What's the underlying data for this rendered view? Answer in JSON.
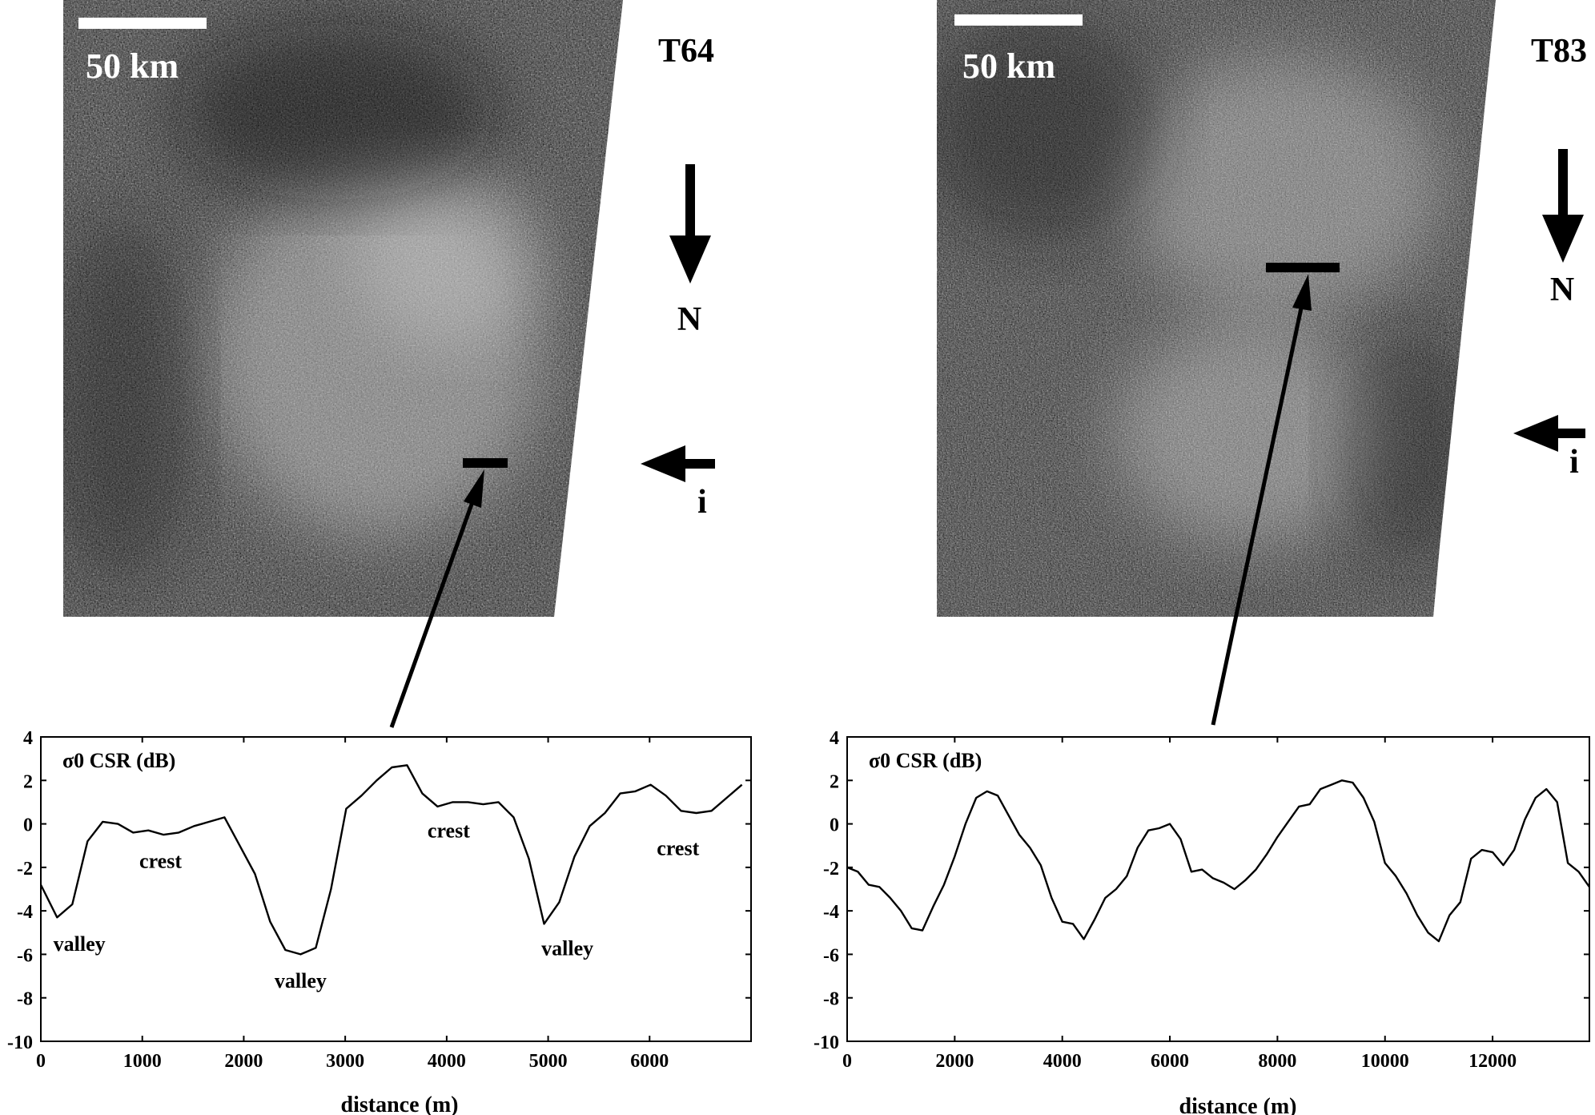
{
  "panels": [
    {
      "id": "t64",
      "label": "T64",
      "scale_bar": "50 km",
      "north_label": "N",
      "incidence_label": "i"
    },
    {
      "id": "t83",
      "label": "T83",
      "scale_bar": "50 km",
      "north_label": "N",
      "incidence_label": "i"
    }
  ],
  "chart_data": [
    {
      "type": "line",
      "title": "σ0 CSR (dB)",
      "xlabel": "distance (m)",
      "ylabel": "",
      "xlim": [
        0,
        7000
      ],
      "ylim": [
        -10,
        4
      ],
      "xticks": [
        0,
        1000,
        2000,
        3000,
        4000,
        5000,
        6000
      ],
      "yticks": [
        4,
        2,
        0,
        -2,
        -4,
        -6,
        -8,
        -10
      ],
      "grid": false,
      "x": [
        0,
        160,
        310,
        460,
        610,
        760,
        910,
        1060,
        1210,
        1360,
        1510,
        1660,
        1810,
        1960,
        2110,
        2260,
        2410,
        2560,
        2710,
        2860,
        3010,
        3160,
        3310,
        3460,
        3610,
        3760,
        3910,
        4060,
        4210,
        4360,
        4510,
        4660,
        4810,
        4960,
        5110,
        5260,
        5410,
        5560,
        5710,
        5860,
        6010,
        6160,
        6310,
        6460,
        6610,
        6760,
        6910
      ],
      "values": [
        -2.8,
        -4.3,
        -3.7,
        -0.8,
        0.1,
        0.0,
        -0.4,
        -0.3,
        -0.5,
        -0.4,
        -0.1,
        0.1,
        0.3,
        -1.0,
        -2.3,
        -4.5,
        -5.8,
        -6.0,
        -5.7,
        -3.0,
        0.7,
        1.3,
        2.0,
        2.6,
        2.7,
        1.4,
        0.8,
        1.0,
        1.0,
        0.9,
        1.0,
        0.3,
        -1.6,
        -4.6,
        -3.6,
        -1.5,
        -0.1,
        0.5,
        1.4,
        1.5,
        1.8,
        1.3,
        0.6,
        0.5,
        0.6,
        1.2,
        1.8
      ],
      "annotations": [
        {
          "text": "valley",
          "x": 380,
          "y": -5.5
        },
        {
          "text": "crest",
          "x": 1180,
          "y": -1.7
        },
        {
          "text": "valley",
          "x": 2560,
          "y": -7.2
        },
        {
          "text": "crest",
          "x": 4020,
          "y": -0.3
        },
        {
          "text": "valley",
          "x": 5190,
          "y": -5.7
        },
        {
          "text": "crest",
          "x": 6280,
          "y": -1.1
        }
      ]
    },
    {
      "type": "line",
      "title": "σ0 CSR (dB)",
      "xlabel": "distance (m)",
      "ylabel": "",
      "xlim": [
        0,
        13800
      ],
      "ylim": [
        -10,
        4
      ],
      "xticks": [
        0,
        2000,
        4000,
        6000,
        8000,
        10000,
        12000
      ],
      "yticks": [
        4,
        2,
        0,
        -2,
        -4,
        -6,
        -8,
        -10
      ],
      "grid": false,
      "x": [
        0,
        200,
        400,
        600,
        800,
        1000,
        1200,
        1400,
        1600,
        1800,
        2000,
        2200,
        2400,
        2600,
        2800,
        3000,
        3200,
        3400,
        3600,
        3800,
        4000,
        4200,
        4400,
        4600,
        4800,
        5000,
        5200,
        5400,
        5600,
        5800,
        6000,
        6200,
        6400,
        6600,
        6800,
        7000,
        7200,
        7400,
        7600,
        7800,
        8000,
        8200,
        8400,
        8600,
        8800,
        9000,
        9200,
        9400,
        9600,
        9800,
        10000,
        10200,
        10400,
        10600,
        10800,
        11000,
        11200,
        11400,
        11600,
        11800,
        12000,
        12200,
        12400,
        12600,
        12800,
        13000,
        13200,
        13400,
        13600,
        13800
      ],
      "values": [
        -2.0,
        -2.2,
        -2.8,
        -2.9,
        -3.4,
        -4.0,
        -4.8,
        -4.9,
        -3.8,
        -2.8,
        -1.5,
        0.0,
        1.2,
        1.5,
        1.3,
        0.4,
        -0.5,
        -1.1,
        -1.9,
        -3.4,
        -4.5,
        -4.6,
        -5.3,
        -4.4,
        -3.4,
        -3.0,
        -2.4,
        -1.1,
        -0.3,
        -0.2,
        0.0,
        -0.7,
        -2.2,
        -2.1,
        -2.5,
        -2.7,
        -3.0,
        -2.6,
        -2.1,
        -1.4,
        -0.6,
        0.1,
        0.8,
        0.9,
        1.6,
        1.8,
        2.0,
        1.9,
        1.2,
        0.1,
        -1.8,
        -2.4,
        -3.2,
        -4.2,
        -5.0,
        -5.4,
        -4.2,
        -3.6,
        -1.6,
        -1.2,
        -1.3,
        -1.9,
        -1.2,
        0.2,
        1.2,
        1.6,
        1.0,
        -1.8,
        -2.2,
        -2.9
      ]
    }
  ]
}
